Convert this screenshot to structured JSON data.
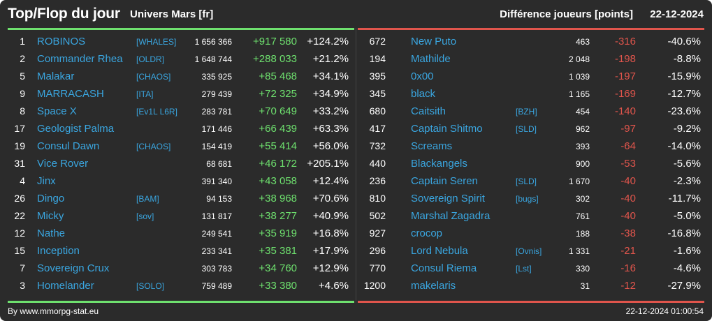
{
  "header": {
    "title": "Top/Flop du jour",
    "univers": "Univers Mars [fr]",
    "diff_label": "Différence joueurs [points]",
    "date": "22-12-2024"
  },
  "colors": {
    "background": "#2b2b2b",
    "top_accent": "#6ee06e",
    "flop_accent": "#e0554c",
    "name_link": "#3aa6e0"
  },
  "top": [
    {
      "rank": "1",
      "name": "ROBINOS",
      "tag": "[WHALES]",
      "points": "1 656 366",
      "diff": "+917 580",
      "pct": "+124.2%"
    },
    {
      "rank": "2",
      "name": "Commander Rhea",
      "tag": "[OLDR]",
      "points": "1 648 744",
      "diff": "+288 033",
      "pct": "+21.2%"
    },
    {
      "rank": "5",
      "name": "Malakar",
      "tag": "[CHAOS]",
      "points": "335 925",
      "diff": "+85 468",
      "pct": "+34.1%"
    },
    {
      "rank": "9",
      "name": "MARRACASH",
      "tag": "[ITA]",
      "points": "279 439",
      "diff": "+72 325",
      "pct": "+34.9%"
    },
    {
      "rank": "8",
      "name": "Space X",
      "tag": "[Ev1L L6R]",
      "points": "283 781",
      "diff": "+70 649",
      "pct": "+33.2%"
    },
    {
      "rank": "17",
      "name": "Geologist Palma",
      "tag": "",
      "points": "171 446",
      "diff": "+66 439",
      "pct": "+63.3%"
    },
    {
      "rank": "19",
      "name": "Consul Dawn",
      "tag": "[CHAOS]",
      "points": "154 419",
      "diff": "+55 414",
      "pct": "+56.0%"
    },
    {
      "rank": "31",
      "name": "Vice Rover",
      "tag": "",
      "points": "68 681",
      "diff": "+46 172",
      "pct": "+205.1%"
    },
    {
      "rank": "4",
      "name": "Jinx",
      "tag": "",
      "points": "391 340",
      "diff": "+43 058",
      "pct": "+12.4%"
    },
    {
      "rank": "26",
      "name": "Dingo",
      "tag": "[BAM]",
      "points": "94 153",
      "diff": "+38 968",
      "pct": "+70.6%"
    },
    {
      "rank": "22",
      "name": "Micky",
      "tag": "[sov]",
      "points": "131 817",
      "diff": "+38 277",
      "pct": "+40.9%"
    },
    {
      "rank": "12",
      "name": "Nathe",
      "tag": "",
      "points": "249 541",
      "diff": "+35 919",
      "pct": "+16.8%"
    },
    {
      "rank": "15",
      "name": "Inception",
      "tag": "",
      "points": "233 341",
      "diff": "+35 381",
      "pct": "+17.9%"
    },
    {
      "rank": "7",
      "name": "Sovereign Crux",
      "tag": "",
      "points": "303 783",
      "diff": "+34 760",
      "pct": "+12.9%"
    },
    {
      "rank": "3",
      "name": "Homelander",
      "tag": "[SOLO]",
      "points": "759 489",
      "diff": "+33 380",
      "pct": "+4.6%"
    }
  ],
  "flop": [
    {
      "rank": "672",
      "name": "New Puto",
      "tag": "",
      "points": "463",
      "diff": "-316",
      "pct": "-40.6%"
    },
    {
      "rank": "194",
      "name": "Mathilde",
      "tag": "",
      "points": "2 048",
      "diff": "-198",
      "pct": "-8.8%"
    },
    {
      "rank": "395",
      "name": "0x00",
      "tag": "",
      "points": "1 039",
      "diff": "-197",
      "pct": "-15.9%"
    },
    {
      "rank": "345",
      "name": "black",
      "tag": "",
      "points": "1 165",
      "diff": "-169",
      "pct": "-12.7%"
    },
    {
      "rank": "680",
      "name": "Caitsith",
      "tag": "[BZH]",
      "points": "454",
      "diff": "-140",
      "pct": "-23.6%"
    },
    {
      "rank": "417",
      "name": "Captain Shitmo",
      "tag": "[SLD]",
      "points": "962",
      "diff": "-97",
      "pct": "-9.2%"
    },
    {
      "rank": "732",
      "name": "Screams",
      "tag": "",
      "points": "393",
      "diff": "-64",
      "pct": "-14.0%"
    },
    {
      "rank": "440",
      "name": "Blackangels",
      "tag": "",
      "points": "900",
      "diff": "-53",
      "pct": "-5.6%"
    },
    {
      "rank": "236",
      "name": "Captain Seren",
      "tag": "[SLD]",
      "points": "1 670",
      "diff": "-40",
      "pct": "-2.3%"
    },
    {
      "rank": "810",
      "name": "Sovereign Spirit",
      "tag": "[bugs]",
      "points": "302",
      "diff": "-40",
      "pct": "-11.7%"
    },
    {
      "rank": "502",
      "name": "Marshal Zagadra",
      "tag": "",
      "points": "761",
      "diff": "-40",
      "pct": "-5.0%"
    },
    {
      "rank": "927",
      "name": "crocop",
      "tag": "",
      "points": "188",
      "diff": "-38",
      "pct": "-16.8%"
    },
    {
      "rank": "296",
      "name": "Lord Nebula",
      "tag": "[Ovnis]",
      "points": "1 331",
      "diff": "-21",
      "pct": "-1.6%"
    },
    {
      "rank": "770",
      "name": "Consul Riema",
      "tag": "[Lst]",
      "points": "330",
      "diff": "-16",
      "pct": "-4.6%"
    },
    {
      "rank": "1200",
      "name": "makelaris",
      "tag": "",
      "points": "31",
      "diff": "-12",
      "pct": "-27.9%"
    }
  ],
  "footer": {
    "source": "By www.mmorpg-stat.eu",
    "timestamp": "22-12-2024 01:00:54"
  }
}
